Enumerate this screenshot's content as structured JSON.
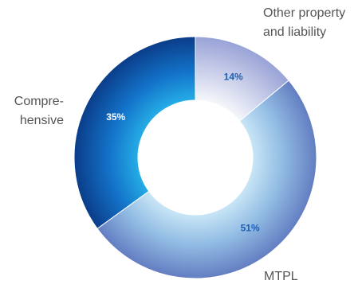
{
  "chart_data": {
    "type": "pie",
    "donut": true,
    "slices": [
      {
        "label_lines": [
          "Other property",
          "and liability"
        ],
        "value": 14,
        "value_label": "14%",
        "color": "#9aa6d8"
      },
      {
        "label_lines": [
          "MTPL"
        ],
        "value": 51,
        "value_label": "51%",
        "color": "#7f97d0"
      },
      {
        "label_lines": [
          "Compre-",
          "hensive"
        ],
        "value": 35,
        "value_label": "35%",
        "color": "#1f82d6"
      }
    ]
  }
}
